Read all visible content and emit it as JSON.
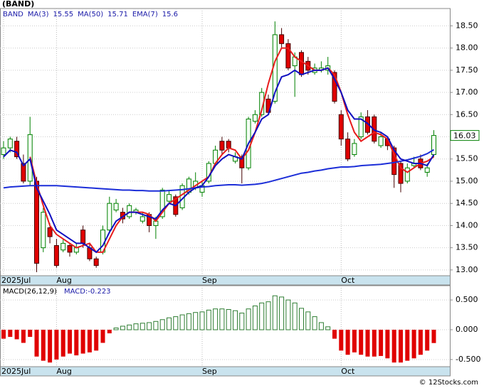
{
  "chart_data": [
    {
      "type": "candlestick",
      "title": "(BAND)",
      "symbol": "BAND",
      "xticks": [
        {
          "value": 0,
          "label": "2025Jul"
        },
        {
          "value": 8,
          "label": "Aug"
        },
        {
          "value": 30,
          "label": "Sep"
        },
        {
          "value": 51,
          "label": "Oct"
        }
      ],
      "ylim": [
        12.87,
        18.89
      ],
      "yticks": [
        {
          "value": 13,
          "label": "13.00"
        },
        {
          "value": 13.5,
          "label": "13.50"
        },
        {
          "value": 14,
          "label": "14.00"
        },
        {
          "value": 14.5,
          "label": "14.50"
        },
        {
          "value": 15,
          "label": "15.00"
        },
        {
          "value": 15.5,
          "label": "15.50"
        },
        {
          "value": 16,
          "label": "16.00"
        },
        {
          "value": 16.5,
          "label": "16.50"
        },
        {
          "value": 17,
          "label": "17.00"
        },
        {
          "value": 17.5,
          "label": "17.50"
        },
        {
          "value": 18,
          "label": "18.00"
        },
        {
          "value": 18.5,
          "label": "18.50"
        }
      ],
      "grid": true,
      "up_color": "#008000",
      "down_color": "#e00000",
      "open": [
        15.6,
        15.75,
        15.9,
        15.4,
        15.0,
        15.0,
        13.5,
        13.95,
        13.55,
        13.45,
        13.55,
        13.4,
        13.9,
        13.5,
        13.25,
        13.4,
        13.9,
        14.35,
        14.3,
        14.2,
        14.3,
        14.1,
        14.25,
        14.0,
        14.2,
        14.55,
        14.65,
        14.4,
        14.75,
        14.85,
        14.75,
        15.0,
        15.4,
        15.9,
        15.9,
        15.45,
        15.55,
        15.3,
        16.35,
        16.5,
        16.85,
        16.8,
        18.3,
        18.1,
        17.6,
        17.9,
        17.7,
        17.45,
        17.5,
        17.5,
        17.45,
        16.5,
        15.95,
        15.6,
        16.0,
        16.45,
        16.45,
        15.8,
        15.95,
        15.75,
        15.4,
        15.0,
        15.35,
        15.5,
        15.2,
        15.6
      ],
      "high": [
        15.9,
        16.0,
        16.0,
        15.6,
        16.45,
        15.1,
        14.4,
        14.05,
        13.7,
        13.7,
        13.6,
        13.6,
        14.0,
        13.6,
        13.3,
        14.0,
        14.65,
        14.6,
        14.4,
        14.5,
        14.4,
        14.3,
        14.3,
        14.2,
        14.85,
        14.8,
        14.7,
        14.95,
        15.1,
        15.2,
        15.0,
        15.45,
        15.8,
        16.0,
        15.95,
        15.65,
        15.6,
        16.45,
        16.6,
        17.1,
        16.95,
        18.6,
        18.45,
        18.2,
        17.9,
        17.95,
        17.8,
        17.65,
        17.7,
        17.8,
        17.5,
        16.6,
        16.1,
        15.95,
        16.55,
        16.6,
        16.5,
        16.1,
        16.0,
        15.8,
        15.45,
        15.4,
        15.55,
        15.6,
        15.4,
        16.15
      ],
      "low": [
        15.5,
        15.65,
        15.5,
        14.95,
        14.9,
        12.95,
        13.4,
        13.6,
        13.05,
        13.4,
        13.3,
        13.35,
        13.5,
        13.2,
        13.05,
        13.35,
        13.85,
        14.3,
        14.05,
        14.15,
        14.25,
        14.05,
        13.85,
        13.7,
        14.15,
        14.5,
        14.2,
        14.35,
        14.7,
        14.8,
        14.65,
        14.95,
        15.35,
        15.6,
        15.65,
        15.4,
        14.95,
        15.25,
        16.3,
        16.45,
        16.5,
        16.75,
        18.0,
        17.5,
        16.9,
        17.35,
        17.4,
        17.4,
        17.45,
        17.4,
        16.75,
        15.8,
        15.45,
        15.55,
        15.95,
        16.05,
        15.85,
        15.75,
        15.7,
        14.85,
        14.75,
        14.95,
        15.3,
        15.25,
        15.1,
        15.55
      ],
      "close": [
        15.75,
        15.95,
        15.55,
        15.0,
        16.05,
        13.15,
        14.3,
        13.75,
        13.1,
        13.6,
        13.4,
        13.5,
        13.6,
        13.25,
        13.1,
        13.9,
        14.5,
        14.5,
        14.15,
        14.45,
        14.35,
        14.2,
        14.0,
        14.1,
        14.8,
        14.7,
        14.25,
        14.9,
        15.05,
        15.0,
        14.9,
        15.4,
        15.7,
        15.7,
        15.75,
        15.55,
        15.3,
        16.4,
        16.5,
        17.0,
        16.55,
        18.3,
        18.1,
        17.55,
        17.8,
        17.4,
        17.5,
        17.55,
        17.55,
        17.6,
        16.8,
        15.95,
        15.5,
        15.85,
        16.45,
        16.1,
        15.9,
        16.0,
        15.8,
        15.15,
        14.95,
        15.3,
        15.4,
        15.3,
        15.3,
        16.03
      ],
      "series": [
        {
          "name": "MA(3)",
          "color": "#e81c1c",
          "legend_value": 15.55,
          "values": [
            null,
            null,
            null,
            null,
            15.55,
            14.95,
            14.45,
            14.0,
            13.8,
            13.7,
            13.6,
            13.5,
            13.55,
            13.6,
            13.4,
            13.4,
            13.7,
            14.0,
            14.2,
            14.3,
            14.3,
            14.3,
            14.25,
            14.1,
            14.3,
            14.5,
            14.6,
            14.7,
            14.8,
            14.9,
            15.0,
            15.1,
            15.4,
            15.6,
            15.75,
            15.7,
            15.5,
            15.7,
            16.1,
            16.6,
            17.2,
            17.7,
            18.0,
            18.0,
            17.8,
            17.7,
            17.6,
            17.5,
            17.5,
            17.55,
            17.4,
            17.0,
            16.5,
            16.1,
            15.9,
            16.0,
            16.1,
            16.05,
            15.95,
            15.6,
            15.3,
            15.2,
            15.3,
            15.4,
            15.45,
            15.55
          ]
        },
        {
          "name": "MA(50)",
          "color": "#1c2ed8",
          "legend_value": 15.71,
          "values": [
            14.85,
            14.87,
            14.88,
            14.89,
            14.9,
            14.9,
            14.9,
            14.9,
            14.9,
            14.89,
            14.88,
            14.87,
            14.86,
            14.85,
            14.84,
            14.83,
            14.82,
            14.81,
            14.8,
            14.8,
            14.79,
            14.79,
            14.78,
            14.78,
            14.78,
            14.79,
            14.8,
            14.81,
            14.83,
            14.85,
            14.87,
            14.88,
            14.9,
            14.91,
            14.92,
            14.92,
            14.91,
            14.92,
            14.93,
            14.95,
            14.98,
            15.02,
            15.06,
            15.1,
            15.14,
            15.18,
            15.2,
            15.23,
            15.25,
            15.28,
            15.3,
            15.32,
            15.32,
            15.33,
            15.35,
            15.36,
            15.37,
            15.38,
            15.4,
            15.42,
            15.45,
            15.48,
            15.52,
            15.56,
            15.62,
            15.71
          ]
        },
        {
          "name": "EMA(7)",
          "color": "#1010c0",
          "legend_value": 15.6,
          "values": [
            15.55,
            15.7,
            15.65,
            15.35,
            15.5,
            14.85,
            14.55,
            14.25,
            13.9,
            13.8,
            13.7,
            13.6,
            13.6,
            13.5,
            13.4,
            13.55,
            13.85,
            14.1,
            14.2,
            14.3,
            14.3,
            14.25,
            14.2,
            14.15,
            14.35,
            14.5,
            14.45,
            14.6,
            14.75,
            14.85,
            14.9,
            15.1,
            15.35,
            15.5,
            15.6,
            15.55,
            15.5,
            15.85,
            16.1,
            16.4,
            16.5,
            17.0,
            17.35,
            17.4,
            17.5,
            17.4,
            17.45,
            17.5,
            17.5,
            17.55,
            17.3,
            17.0,
            16.6,
            16.4,
            16.4,
            16.3,
            16.15,
            16.1,
            16.0,
            15.7,
            15.5,
            15.45,
            15.4,
            15.4,
            15.35,
            15.6
          ]
        }
      ]
    },
    {
      "type": "macd",
      "title": "MACD(26,12,9)",
      "value_name": "MACD:",
      "xticks": [
        {
          "value": 0,
          "label": "2025Jul"
        },
        {
          "value": 8,
          "label": "Aug"
        },
        {
          "value": 30,
          "label": "Sep"
        },
        {
          "value": 51,
          "label": "Oct"
        }
      ],
      "ylim": [
        -0.62,
        0.74
      ],
      "yticks": [
        {
          "value": 0.5,
          "label": "0.500"
        },
        {
          "value": 0,
          "label": "0.000"
        },
        {
          "value": -0.5,
          "label": "-0.500"
        }
      ],
      "up_color": "#2e7d32",
      "down_color": "#e00000",
      "values": [
        -0.15,
        -0.12,
        -0.16,
        -0.22,
        -0.12,
        -0.45,
        -0.52,
        -0.55,
        -0.5,
        -0.45,
        -0.4,
        -0.43,
        -0.4,
        -0.38,
        -0.35,
        -0.22,
        -0.06,
        0.03,
        0.06,
        0.08,
        0.1,
        0.11,
        0.12,
        0.14,
        0.17,
        0.2,
        0.22,
        0.25,
        0.27,
        0.29,
        0.3,
        0.33,
        0.35,
        0.35,
        0.34,
        0.32,
        0.28,
        0.35,
        0.4,
        0.45,
        0.47,
        0.57,
        0.55,
        0.5,
        0.45,
        0.36,
        0.3,
        0.22,
        0.12,
        0.05,
        -0.15,
        -0.35,
        -0.42,
        -0.38,
        -0.42,
        -0.45,
        -0.45,
        -0.44,
        -0.48,
        -0.55,
        -0.55,
        -0.52,
        -0.48,
        -0.42,
        -0.35,
        -0.223
      ]
    },
    {
      "watermark": "© 12Stocks.com"
    }
  ]
}
